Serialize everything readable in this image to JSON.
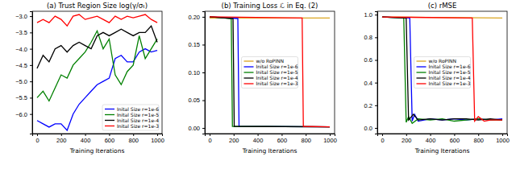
{
  "chart_data": [
    {
      "type": "line",
      "title": "(a) Trust Region Size log(γ/σₜ)",
      "x_label": "Training Iterations",
      "x": [
        0,
        50,
        100,
        150,
        200,
        250,
        300,
        350,
        400,
        450,
        500,
        550,
        600,
        650,
        700,
        750,
        800,
        850,
        900,
        950,
        1000
      ],
      "xlim": [
        -40,
        1040
      ],
      "xticks": [
        0,
        200,
        400,
        600,
        800,
        1000
      ],
      "ylim": [
        -6.6,
        -2.85
      ],
      "yticks": [
        {
          "value": -6.0,
          "label": "−6.0"
        },
        {
          "value": -5.5,
          "label": "−5.5"
        },
        {
          "value": -5.0,
          "label": "−5.0"
        },
        {
          "value": -4.5,
          "label": "−4.5"
        },
        {
          "value": -4.0,
          "label": "−4.0"
        },
        {
          "value": -3.5,
          "label": "−3.5"
        },
        {
          "value": -3.0,
          "label": "−3.0"
        }
      ],
      "legend": "lower right",
      "series": [
        {
          "name": "Inital Size r=1e-6",
          "color": "#0000ff",
          "values": [
            -6.2,
            -6.3,
            -6.4,
            -6.3,
            -6.3,
            -6.5,
            -6.0,
            -5.7,
            -5.5,
            -5.3,
            -5.1,
            -5.0,
            -4.9,
            -4.3,
            -4.2,
            -4.4,
            -4.4,
            -4.1,
            -4.0,
            -4.1,
            -4.05
          ]
        },
        {
          "name": "Inital Size r=1e-5",
          "color": "#008000",
          "values": [
            -5.5,
            -5.3,
            -5.6,
            -5.2,
            -4.8,
            -4.9,
            -4.5,
            -4.3,
            -4.1,
            -3.8,
            -3.45,
            -4.0,
            -3.7,
            -4.8,
            -5.1,
            -4.7,
            -4.5,
            -3.6,
            -4.3,
            -4.0,
            -3.7
          ]
        },
        {
          "name": "Inital Size r=1e-4",
          "color": "#000000",
          "values": [
            -4.6,
            -4.2,
            -4.4,
            -4.0,
            -3.9,
            -4.1,
            -3.9,
            -3.8,
            -3.9,
            -4.0,
            -3.6,
            -3.5,
            -3.6,
            -3.5,
            -3.4,
            -3.5,
            -3.6,
            -3.5,
            -3.5,
            -3.3,
            -3.8
          ]
        },
        {
          "name": "Inital Size r=1e-3",
          "color": "#ff0000",
          "values": [
            -3.2,
            -3.1,
            -3.2,
            -3.0,
            -3.1,
            -3.3,
            -3.0,
            -2.95,
            -3.1,
            -3.05,
            -3.0,
            -3.1,
            -3.2,
            -3.0,
            -3.1,
            -3.0,
            -3.05,
            -3.0,
            -2.95,
            -3.1,
            -3.2
          ]
        }
      ]
    },
    {
      "type": "line",
      "title": "(b) Training Loss ℒ in Eq. (2)",
      "x_label": "Training Iterations",
      "xlim": [
        -40,
        1040
      ],
      "xticks": [
        0,
        200,
        400,
        600,
        800,
        1000
      ],
      "ylim": [
        -0.01,
        0.21
      ],
      "yticks": [
        {
          "value": 0,
          "label": "0.00"
        },
        0.05,
        {
          "value": 0.1,
          "label": "0.10"
        },
        0.15,
        {
          "value": 0.2,
          "label": "0.20"
        }
      ],
      "legend": "center",
      "series": [
        {
          "name": "w/o RoPINN",
          "color": "#daa520",
          "x": [
            0,
            1000
          ],
          "values": [
            0.198,
            0.198
          ]
        },
        {
          "name": "Inital Size r=1e-6",
          "color": "#0000ff",
          "x": [
            0,
            235,
            245,
            1000
          ],
          "values": [
            0.2,
            0.197,
            0.003,
            0.002
          ]
        },
        {
          "name": "Inital Size r=1e-5",
          "color": "#008000",
          "x": [
            0,
            180,
            190,
            1000
          ],
          "values": [
            0.2,
            0.197,
            0.003,
            0.002
          ]
        },
        {
          "name": "Inital Size r=1e-4",
          "color": "#000000",
          "x": [
            0,
            195,
            205,
            1000
          ],
          "values": [
            0.2,
            0.197,
            0.003,
            0.002
          ]
        },
        {
          "name": "Inital Size r=1e-3",
          "color": "#ff0000",
          "x": [
            0,
            770,
            780,
            1000
          ],
          "values": [
            0.2,
            0.198,
            0.003,
            0.002
          ]
        }
      ]
    },
    {
      "type": "line",
      "title": "(c) rMSE",
      "x_label": "Training Iterations",
      "xlim": [
        -40,
        1040
      ],
      "xticks": [
        0,
        200,
        400,
        600,
        800,
        1000
      ],
      "ylim": [
        -0.05,
        1.03
      ],
      "yticks": [
        {
          "value": 0,
          "label": "0.0"
        },
        0.2,
        0.4,
        0.6,
        0.8,
        {
          "value": 1,
          "label": "1.0"
        }
      ],
      "legend": "center",
      "series": [
        {
          "name": "w/o RoPINN",
          "color": "#daa520",
          "x": [
            0,
            1000
          ],
          "values": [
            0.98,
            0.97
          ]
        },
        {
          "name": "Inital Size r=1e-6",
          "color": "#0000ff",
          "x": [
            0,
            230,
            250,
            270,
            300,
            350,
            400,
            500,
            600,
            700,
            800,
            900,
            1000
          ],
          "values": [
            0.98,
            0.97,
            0.06,
            0.12,
            0.06,
            0.07,
            0.08,
            0.07,
            0.08,
            0.07,
            0.08,
            0.07,
            0.08
          ]
        },
        {
          "name": "Inital Size r=1e-5",
          "color": "#008000",
          "x": [
            0,
            180,
            200,
            220,
            250,
            300,
            400,
            500,
            600,
            700,
            800,
            900,
            1000
          ],
          "values": [
            0.98,
            0.97,
            0.05,
            0.1,
            0.04,
            0.08,
            0.07,
            0.08,
            0.06,
            0.07,
            0.08,
            0.07,
            0.07
          ]
        },
        {
          "name": "Inital Size r=1e-4",
          "color": "#000000",
          "x": [
            0,
            200,
            220,
            260,
            300,
            400,
            500,
            600,
            700,
            800,
            900,
            1000
          ],
          "values": [
            0.98,
            0.97,
            0.07,
            0.12,
            0.07,
            0.08,
            0.07,
            0.08,
            0.08,
            0.07,
            0.08,
            0.07
          ]
        },
        {
          "name": "Inital Size r=1e-3",
          "color": "#ff0000",
          "x": [
            0,
            750,
            770,
            800,
            850,
            900,
            1000
          ],
          "values": [
            0.98,
            0.97,
            0.06,
            0.1,
            0.06,
            0.07,
            0.07
          ]
        }
      ]
    }
  ]
}
